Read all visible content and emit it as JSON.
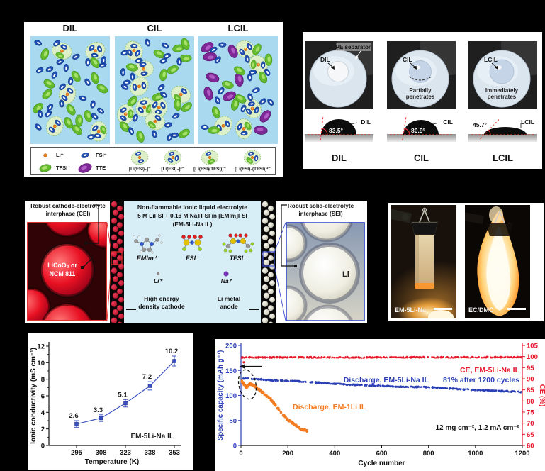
{
  "panel_a": {
    "columns": [
      {
        "title": "DIL",
        "fsi": 24,
        "tfsi": 13,
        "tte": 0,
        "clusters": 5
      },
      {
        "title": "CIL",
        "fsi": 20,
        "tfsi": 14,
        "tte": 0,
        "clusters": 8
      },
      {
        "title": "LCIL",
        "fsi": 15,
        "tfsi": 9,
        "tte": 9,
        "clusters": 5
      }
    ],
    "legend_simple": [
      {
        "name": "li-ion",
        "label": "Li⁺"
      },
      {
        "name": "fsi-anion",
        "label": "FSI⁻"
      },
      {
        "name": "tfsi-anion",
        "label": "TFSI⁻"
      },
      {
        "name": "tte-molecule",
        "label": "TTE"
      }
    ],
    "legend_clusters": [
      {
        "name": "li-fsi2-cluster",
        "label": "[Li(FSI)₂]⁻",
        "fsi": 2,
        "tfsi": 0
      },
      {
        "name": "li-fsi3-cluster",
        "label": "[Li(FSI)₃]²⁻",
        "fsi": 3,
        "tfsi": 0
      },
      {
        "name": "li-fsi-tfsi-cluster",
        "label": "[Li(FSI)(TFSI)]⁻",
        "fsi": 1,
        "tfsi": 1
      },
      {
        "name": "li-fsi2-tfsi-cluster",
        "label": "[Li(FSI)₂(TFSI)]²⁻",
        "fsi": 2,
        "tfsi": 1
      }
    ],
    "colors": {
      "bg": "#a9d9ef",
      "fsi": "#1f4fb0",
      "tfsi": "#63bb2d",
      "tte": "#7e2796",
      "li": "#f57f17",
      "cluster_fill": "#dcefc7",
      "cluster_edge": "#8fbf6d"
    }
  },
  "panel_b": {
    "separator_label": "PE separator",
    "photos": [
      {
        "droplet_label": "DIL",
        "note_lines": []
      },
      {
        "droplet_label": "CIL",
        "note_lines": [
          "Partially",
          "penetrates"
        ]
      },
      {
        "droplet_label": "LCIL",
        "note_lines": [
          "Immediately",
          "penetrates"
        ]
      }
    ],
    "contact_angles": [
      {
        "label": "DIL",
        "value": "83.5°",
        "deg": 83.5
      },
      {
        "label": "CIL",
        "value": "80.9°",
        "deg": 80.9
      },
      {
        "label": "LCIL",
        "value": "45.7°",
        "deg": 45.7
      }
    ],
    "captions": [
      "DIL",
      "CIL",
      "LCIL"
    ]
  },
  "panel_c": {
    "cei_label_lines": [
      "Robust cathode-electrolyte",
      "interphase (CEI)"
    ],
    "sei_label_lines": [
      "Robust solid-electrolyte",
      "interphase (SEI)"
    ],
    "cathode_material_lines": [
      "LiCoO₂ or",
      "NCM 811"
    ],
    "anode_material": "Li",
    "electrolyte_title": "Non-flammable Ionic liquid electrolyte",
    "electrolyte_formula": "5 M LiFSI + 0.16 M NaTFSI in [EMIm]FSI",
    "electrolyte_name": "(EM-5Li-Na IL)",
    "molecule_labels": [
      "EMIm⁺",
      "FSI⁻",
      "TFSI⁻"
    ],
    "ion_labels": [
      "Li⁺",
      "Na⁺"
    ],
    "cathode_caption_lines": [
      "High energy",
      "density cathode"
    ],
    "anode_caption_lines": [
      "Li metal",
      "anode"
    ]
  },
  "panel_d": {
    "photos": [
      {
        "label": "EM-5Li-Na"
      },
      {
        "label": "EC/DMC"
      }
    ]
  },
  "chart_data": [
    {
      "id": "ionic-conductivity",
      "type": "line",
      "categories": [
        295,
        308,
        323,
        338,
        353
      ],
      "values": [
        2.6,
        3.3,
        5.1,
        7.2,
        10.2
      ],
      "errors": [
        0.4,
        0.4,
        0.45,
        0.5,
        0.6
      ],
      "point_labels": [
        "2.6",
        "3.3",
        "5.1",
        "7.2",
        "10.2"
      ],
      "xlabel": "Temperature (K)",
      "ylabel": "Ionic conductivity (mS cm⁻¹)",
      "ylim": [
        0,
        12
      ],
      "yticks": [
        0,
        2,
        4,
        6,
        8,
        10,
        12
      ],
      "annotation": "EM-5Li-Na IL",
      "color": "#3a50c2",
      "legend_position": "none",
      "grid": false
    },
    {
      "id": "cycling-performance",
      "type": "scatter",
      "xlabel": "Cycle number",
      "ylabel_left": "Specific capacity (mAh g⁻¹)",
      "ylabel_right": "CE (%)",
      "xlim": [
        0,
        1200
      ],
      "xticks": [
        0,
        200,
        400,
        600,
        800,
        1000,
        1200
      ],
      "ylim_left": [
        0,
        200
      ],
      "yticks_left": [
        0,
        50,
        100,
        150,
        200
      ],
      "ylim_right": [
        60,
        105
      ],
      "yticks_right": [
        60,
        65,
        70,
        75,
        80,
        85,
        90,
        95,
        100,
        105
      ],
      "grid": false,
      "annotations": {
        "ce": "CE, EM-5Li-Na IL",
        "retention": "81% after 1200 cycles",
        "discharge_main": "Discharge, EM-5Li-Na IL",
        "discharge_ref": "Discharge, EM-1Li IL",
        "loading": "12 mg cm⁻², 1.2 mA cm⁻²"
      },
      "series": [
        {
          "name": "Discharge, EM-5Li-Na IL",
          "axis": "left",
          "color": "#2b3fb5",
          "marker_r": 1.3,
          "points_count": 430,
          "noise": 1.1,
          "x_max": 1200,
          "keypoints": [
            [
              0,
              132
            ],
            [
              10,
              134
            ],
            [
              60,
              133
            ],
            [
              150,
              130
            ],
            [
              250,
              128
            ],
            [
              350,
              125
            ],
            [
              450,
              122
            ],
            [
              550,
              120
            ],
            [
              650,
              118
            ],
            [
              750,
              117
            ],
            [
              820,
              116
            ],
            [
              880,
              114
            ],
            [
              950,
              112
            ],
            [
              1050,
              110
            ],
            [
              1150,
              108
            ],
            [
              1200,
              107
            ]
          ]
        },
        {
          "name": "Discharge, EM-1Li IL",
          "axis": "left",
          "color": "#f47b20",
          "marker_r": 1.7,
          "points_count": 165,
          "noise": 2.0,
          "x_max": 285,
          "keypoints": [
            [
              0,
              132
            ],
            [
              6,
              127
            ],
            [
              14,
              121
            ],
            [
              22,
              117
            ],
            [
              30,
              119
            ],
            [
              38,
              123
            ],
            [
              46,
              122
            ],
            [
              60,
              118
            ],
            [
              75,
              113
            ],
            [
              90,
              107
            ],
            [
              105,
              101
            ],
            [
              120,
              96
            ],
            [
              135,
              88
            ],
            [
              150,
              79
            ],
            [
              165,
              70
            ],
            [
              180,
              61
            ],
            [
              195,
              54
            ],
            [
              210,
              48
            ],
            [
              225,
              43
            ],
            [
              240,
              38
            ],
            [
              255,
              34
            ],
            [
              270,
              31
            ],
            [
              285,
              28
            ]
          ]
        },
        {
          "name": "CE, EM-5Li-Na IL",
          "axis": "right",
          "color": "#e8192c",
          "marker_r": 1.2,
          "points_count": 430,
          "noise": 0.28,
          "x_max": 1200,
          "keypoints": [
            [
              0,
              99.6
            ],
            [
              1200,
              99.7
            ]
          ],
          "outliers": [
            [
              12,
              97.4
            ]
          ]
        }
      ]
    }
  ]
}
